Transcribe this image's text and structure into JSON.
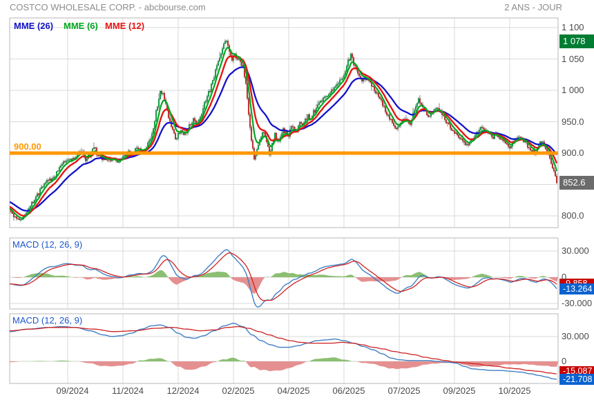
{
  "header": {
    "title": "COSTCO WHOLESALE CORP. - abcbourse.com",
    "period": "2 ANS - JOUR"
  },
  "legend": [
    {
      "label": "MME (26)",
      "color": "#1212c8"
    },
    {
      "label": "MME (6)",
      "color": "#00a81e"
    },
    {
      "label": "MME (12)",
      "color": "#e81414"
    }
  ],
  "price_axis": {
    "ticks": [
      {
        "text": "1 100",
        "value": 1100
      },
      {
        "text": "1 050",
        "value": 1050
      },
      {
        "text": "1 000",
        "value": 1000
      },
      {
        "text": "950.0",
        "value": 950
      },
      {
        "text": "900.0",
        "value": 900
      },
      {
        "text": "800.0",
        "value": 800
      }
    ]
  },
  "x_axis": {
    "labels": [
      "09/2024",
      "11/2024",
      "12/2024",
      "02/2025",
      "04/2025",
      "06/2025",
      "07/2025",
      "09/2025",
      "10/2025"
    ]
  },
  "horizontal_line": {
    "label": "900.00",
    "value": 900,
    "color": "#ff9800"
  },
  "badges": {
    "high": {
      "text": "1 078",
      "value": 1078,
      "bg": "#007d33"
    },
    "last": {
      "text": "852.6",
      "value": 852.6,
      "bg": "#6b6b6b"
    },
    "macd1_signal": {
      "text": "-9.858",
      "value": -9.858,
      "bg": "#c80000"
    },
    "macd1_line": {
      "text": "-13.264",
      "value": -13.264,
      "bg": "#0a62d0"
    },
    "macd2_signal": {
      "text": "-15.087",
      "value": -15.087,
      "bg": "#c80000"
    },
    "macd2_line": {
      "text": "-21.708",
      "value": -21.708,
      "bg": "#0a62d0"
    }
  },
  "panels": [
    {
      "label": "MACD (12, 26, 9)",
      "ticks": [
        {
          "text": "30.000",
          "value": 30
        },
        {
          "text": "0",
          "value": 0
        },
        {
          "text": "-30.000",
          "value": -30
        }
      ]
    },
    {
      "label": "MACD (12, 26, 9)",
      "ticks": [
        {
          "text": "30.000",
          "value": 30
        },
        {
          "text": "0",
          "value": 0
        }
      ]
    }
  ],
  "chart_data": {
    "type": "candlestick",
    "title": "COSTCO WHOLESALE CORP.",
    "timeframe": "2 ans, jour (daily)",
    "ylim": [
      790,
      1110
    ],
    "grid": true,
    "overlays": [
      "EMA 26 (blue)",
      "EMA 6 (green)",
      "EMA 12 (red)"
    ],
    "support_line": 900,
    "last_close": 852.6,
    "high_marker": 1078,
    "colors": {
      "up": "#17a94a",
      "up_edge": "#0b7f36",
      "down": "#cf2f2f",
      "down_edge": "#9e1f1f",
      "wick": "#555555",
      "ema26": "#1212c8",
      "ema6": "#00a81e",
      "ema12": "#e81414",
      "macd_line": "#3f7fc4",
      "macd_signal": "#cc2020",
      "hist_pos": "#8cbf72",
      "hist_neg": "#e59090",
      "hline": "#ff9800"
    },
    "price_anchors": [
      [
        -120,
        872
      ],
      [
        -80,
        860
      ],
      [
        -50,
        848
      ],
      [
        -25,
        830
      ],
      [
        0,
        816
      ],
      [
        14,
        810
      ],
      [
        22,
        799
      ],
      [
        30,
        794
      ],
      [
        38,
        806
      ],
      [
        46,
        820
      ],
      [
        54,
        834
      ],
      [
        62,
        848
      ],
      [
        70,
        856
      ],
      [
        78,
        862
      ],
      [
        86,
        876
      ],
      [
        94,
        888
      ],
      [
        100,
        892
      ],
      [
        106,
        890
      ],
      [
        112,
        899
      ],
      [
        118,
        903
      ],
      [
        124,
        890
      ],
      [
        130,
        897
      ],
      [
        136,
        908
      ],
      [
        142,
        897
      ],
      [
        148,
        890
      ],
      [
        156,
        892
      ],
      [
        164,
        889
      ],
      [
        172,
        887
      ],
      [
        180,
        896
      ],
      [
        186,
        905
      ],
      [
        192,
        899
      ],
      [
        198,
        910
      ],
      [
        204,
        907
      ],
      [
        210,
        905
      ],
      [
        216,
        917
      ],
      [
        222,
        938
      ],
      [
        227,
        968
      ],
      [
        232,
        1000
      ],
      [
        236,
        992
      ],
      [
        240,
        976
      ],
      [
        245,
        956
      ],
      [
        250,
        938
      ],
      [
        254,
        921
      ],
      [
        258,
        930
      ],
      [
        262,
        936
      ],
      [
        266,
        929
      ],
      [
        270,
        933
      ],
      [
        275,
        944
      ],
      [
        280,
        953
      ],
      [
        285,
        948
      ],
      [
        290,
        958
      ],
      [
        296,
        978
      ],
      [
        302,
        996
      ],
      [
        308,
        1016
      ],
      [
        314,
        1040
      ],
      [
        319,
        1056
      ],
      [
        324,
        1072
      ],
      [
        328,
        1078
      ],
      [
        332,
        1062
      ],
      [
        336,
        1050
      ],
      [
        340,
        1056
      ],
      [
        344,
        1052
      ],
      [
        348,
        1046
      ],
      [
        352,
        1038
      ],
      [
        356,
        1008
      ],
      [
        360,
        964
      ],
      [
        364,
        920
      ],
      [
        368,
        893
      ],
      [
        372,
        903
      ],
      [
        376,
        922
      ],
      [
        380,
        936
      ],
      [
        384,
        926
      ],
      [
        388,
        908
      ],
      [
        391,
        897
      ],
      [
        394,
        916
      ],
      [
        398,
        929
      ],
      [
        402,
        917
      ],
      [
        406,
        924
      ],
      [
        410,
        938
      ],
      [
        414,
        932
      ],
      [
        418,
        929
      ],
      [
        422,
        944
      ],
      [
        426,
        938
      ],
      [
        430,
        934
      ],
      [
        434,
        948
      ],
      [
        438,
        944
      ],
      [
        442,
        954
      ],
      [
        446,
        959
      ],
      [
        450,
        956
      ],
      [
        455,
        966
      ],
      [
        460,
        977
      ],
      [
        465,
        980
      ],
      [
        470,
        987
      ],
      [
        475,
        994
      ],
      [
        480,
        1000
      ],
      [
        485,
        1006
      ],
      [
        490,
        1012
      ],
      [
        495,
        1018
      ],
      [
        500,
        1030
      ],
      [
        505,
        1048
      ],
      [
        508,
        1056
      ],
      [
        512,
        1042
      ],
      [
        516,
        1030
      ],
      [
        520,
        1020
      ],
      [
        524,
        1016
      ],
      [
        528,
        1022
      ],
      [
        532,
        1017
      ],
      [
        536,
        1010
      ],
      [
        540,
        1004
      ],
      [
        545,
        996
      ],
      [
        550,
        986
      ],
      [
        555,
        974
      ],
      [
        560,
        963
      ],
      [
        565,
        952
      ],
      [
        570,
        944
      ],
      [
        574,
        937
      ],
      [
        578,
        943
      ],
      [
        582,
        951
      ],
      [
        586,
        957
      ],
      [
        590,
        951
      ],
      [
        594,
        948
      ],
      [
        598,
        961
      ],
      [
        602,
        976
      ],
      [
        606,
        986
      ],
      [
        610,
        979
      ],
      [
        614,
        971
      ],
      [
        618,
        964
      ],
      [
        622,
        958
      ],
      [
        626,
        963
      ],
      [
        630,
        969
      ],
      [
        634,
        971
      ],
      [
        638,
        964
      ],
      [
        642,
        957
      ],
      [
        646,
        950
      ],
      [
        650,
        944
      ],
      [
        654,
        939
      ],
      [
        658,
        934
      ],
      [
        662,
        929
      ],
      [
        666,
        924
      ],
      [
        670,
        919
      ],
      [
        674,
        914
      ],
      [
        678,
        912
      ],
      [
        682,
        919
      ],
      [
        686,
        926
      ],
      [
        690,
        931
      ],
      [
        694,
        936
      ],
      [
        698,
        941
      ],
      [
        702,
        937
      ],
      [
        706,
        931
      ],
      [
        710,
        927
      ],
      [
        714,
        924
      ],
      [
        718,
        929
      ],
      [
        722,
        927
      ],
      [
        726,
        921
      ],
      [
        730,
        917
      ],
      [
        734,
        914
      ],
      [
        738,
        911
      ],
      [
        742,
        917
      ],
      [
        746,
        924
      ],
      [
        750,
        927
      ],
      [
        754,
        923
      ],
      [
        758,
        919
      ],
      [
        762,
        914
      ],
      [
        766,
        909
      ],
      [
        770,
        904
      ],
      [
        774,
        901
      ],
      [
        778,
        909
      ],
      [
        782,
        916
      ],
      [
        786,
        918
      ],
      [
        790,
        909
      ],
      [
        794,
        899
      ],
      [
        798,
        886
      ],
      [
        802,
        870
      ],
      [
        806,
        852.6
      ]
    ],
    "macd_panel1": {
      "note": "MACD(12,26,9) computed from daily closes; end values: line -13.264, signal -9.858"
    },
    "macd_panel2": {
      "note": "smoothed long-horizon MACD(12,26,9); end values: line -21.708, signal -15.087",
      "macd": [
        [
          14,
          36
        ],
        [
          40,
          39
        ],
        [
          70,
          41
        ],
        [
          90,
          42
        ],
        [
          110,
          41
        ],
        [
          130,
          37
        ],
        [
          150,
          32
        ],
        [
          162,
          30
        ],
        [
          175,
          31
        ],
        [
          190,
          34
        ],
        [
          205,
          39
        ],
        [
          220,
          43
        ],
        [
          232,
          44
        ],
        [
          245,
          41
        ],
        [
          258,
          34
        ],
        [
          270,
          29
        ],
        [
          282,
          28
        ],
        [
          295,
          31
        ],
        [
          310,
          37
        ],
        [
          325,
          43
        ],
        [
          338,
          46
        ],
        [
          352,
          42
        ],
        [
          365,
          32
        ],
        [
          378,
          25
        ],
        [
          392,
          20
        ],
        [
          405,
          17
        ],
        [
          418,
          17
        ],
        [
          432,
          19
        ],
        [
          445,
          22
        ],
        [
          458,
          25
        ],
        [
          472,
          26
        ],
        [
          485,
          27
        ],
        [
          498,
          25
        ],
        [
          512,
          22
        ],
        [
          526,
          18
        ],
        [
          540,
          14
        ],
        [
          554,
          9
        ],
        [
          566,
          4
        ],
        [
          578,
          2
        ],
        [
          592,
          1
        ],
        [
          606,
          1
        ],
        [
          620,
          1
        ],
        [
          634,
          0
        ],
        [
          648,
          -1
        ],
        [
          660,
          -2
        ],
        [
          672,
          -6
        ],
        [
          684,
          -9
        ],
        [
          698,
          -10
        ],
        [
          712,
          -11
        ],
        [
          726,
          -11
        ],
        [
          740,
          -12
        ],
        [
          754,
          -13
        ],
        [
          768,
          -15
        ],
        [
          780,
          -17
        ],
        [
          792,
          -19
        ],
        [
          800,
          -21
        ],
        [
          806,
          -21.7
        ]
      ],
      "signal": [
        [
          14,
          37
        ],
        [
          45,
          39
        ],
        [
          75,
          41
        ],
        [
          105,
          41
        ],
        [
          135,
          39
        ],
        [
          165,
          36
        ],
        [
          195,
          37
        ],
        [
          225,
          40
        ],
        [
          250,
          41
        ],
        [
          270,
          39
        ],
        [
          290,
          37
        ],
        [
          310,
          38
        ],
        [
          330,
          41
        ],
        [
          345,
          42
        ],
        [
          360,
          40
        ],
        [
          375,
          36
        ],
        [
          390,
          32
        ],
        [
          405,
          28
        ],
        [
          420,
          25
        ],
        [
          435,
          23
        ],
        [
          450,
          22
        ],
        [
          465,
          22
        ],
        [
          480,
          22
        ],
        [
          495,
          23
        ],
        [
          510,
          22
        ],
        [
          525,
          20
        ],
        [
          540,
          17
        ],
        [
          555,
          15
        ],
        [
          570,
          12
        ],
        [
          585,
          10
        ],
        [
          600,
          8
        ],
        [
          615,
          5
        ],
        [
          630,
          3
        ],
        [
          645,
          1
        ],
        [
          660,
          -1
        ],
        [
          675,
          -2
        ],
        [
          690,
          -3
        ],
        [
          705,
          -5
        ],
        [
          720,
          -6
        ],
        [
          735,
          -8
        ],
        [
          750,
          -9
        ],
        [
          765,
          -11
        ],
        [
          780,
          -12
        ],
        [
          795,
          -14
        ],
        [
          806,
          -15.1
        ]
      ]
    }
  }
}
